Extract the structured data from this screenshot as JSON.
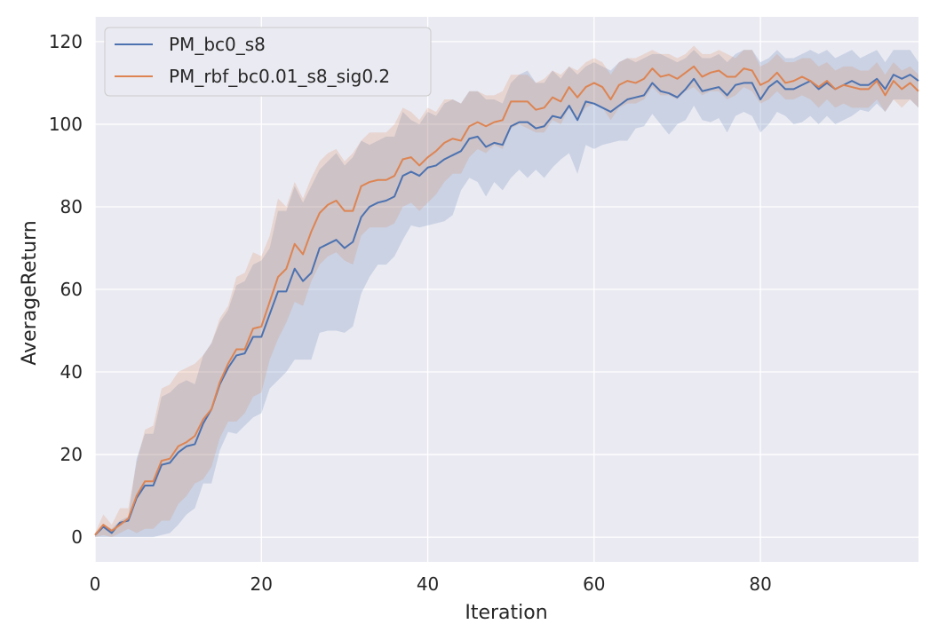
{
  "chart_data": {
    "type": "line",
    "xlabel": "Iteration",
    "ylabel": "AverageReturn",
    "xlim": [
      0,
      99
    ],
    "ylim": [
      -6,
      126
    ],
    "xticks": [
      0,
      20,
      40,
      60,
      80
    ],
    "yticks": [
      0,
      20,
      40,
      60,
      80,
      100,
      120
    ],
    "grid": true,
    "legend_position": "top-left",
    "background": "#EAEAF2",
    "x": [
      0,
      1,
      2,
      3,
      4,
      5,
      6,
      7,
      8,
      9,
      10,
      11,
      12,
      13,
      14,
      15,
      16,
      17,
      18,
      19,
      20,
      21,
      22,
      23,
      24,
      25,
      26,
      27,
      28,
      29,
      30,
      31,
      32,
      33,
      34,
      35,
      36,
      37,
      38,
      39,
      40,
      41,
      42,
      43,
      44,
      45,
      46,
      47,
      48,
      49,
      50,
      51,
      52,
      53,
      54,
      55,
      56,
      57,
      58,
      59,
      60,
      61,
      62,
      63,
      64,
      65,
      66,
      67,
      68,
      69,
      70,
      71,
      72,
      73,
      74,
      75,
      76,
      77,
      78,
      79,
      80,
      81,
      82,
      83,
      84,
      85,
      86,
      87,
      88,
      89,
      90,
      91,
      92,
      93,
      94,
      95,
      96,
      97,
      98,
      99
    ],
    "series": [
      {
        "name": "PM_bc0_s8",
        "color": "#4C72B0",
        "values": [
          0.5,
          2.5,
          1,
          3.5,
          4,
          9.5,
          12.5,
          12.5,
          17.5,
          18,
          20.5,
          22,
          22.5,
          27.5,
          31,
          37,
          41,
          44,
          44.5,
          48.5,
          48.5,
          54,
          59.5,
          59.5,
          65,
          62,
          64,
          70,
          71,
          72,
          70,
          71.5,
          77.5,
          80,
          81,
          81.5,
          82.5,
          87.5,
          88.5,
          87.5,
          89.5,
          90,
          91.5,
          92.5,
          93.5,
          96.5,
          97,
          94.5,
          95.5,
          95,
          99.5,
          100.5,
          100.5,
          99,
          99.5,
          102,
          101.5,
          104.5,
          101,
          105.5,
          105,
          104,
          103,
          104.5,
          106,
          106.5,
          107,
          110,
          108,
          107.5,
          106.5,
          108.5,
          111,
          108,
          108.5,
          109,
          107,
          109.5,
          110,
          110,
          106,
          109,
          110.5,
          108.5,
          108.5,
          109.5,
          110.5,
          108.5,
          110,
          108.5,
          109.5,
          110.5,
          109.5,
          109.5,
          111,
          108.5,
          112,
          111,
          112,
          110.5
        ],
        "lower": [
          0,
          0,
          0,
          0,
          0,
          0,
          0,
          0,
          0.5,
          1,
          3,
          5.5,
          7,
          13,
          13,
          21,
          25.5,
          25,
          27,
          29,
          30,
          36,
          38,
          40,
          43,
          43,
          43,
          49.5,
          50,
          50,
          49.5,
          51,
          59,
          63,
          66,
          66,
          68,
          72,
          75.5,
          75,
          75.5,
          76,
          76.5,
          78,
          84,
          87,
          86,
          82.5,
          86,
          84,
          87,
          89,
          87,
          89,
          87,
          89.5,
          91.5,
          93,
          88,
          95,
          94,
          95,
          95.5,
          96,
          96,
          99,
          99.5,
          102.5,
          100,
          97.5,
          100,
          101,
          104.5,
          101,
          100.5,
          101.5,
          98,
          102,
          103,
          102,
          98,
          100,
          103,
          102,
          100,
          100.5,
          102,
          100,
          102,
          100,
          101,
          102,
          103.5,
          103,
          105,
          103,
          106,
          106,
          106,
          104
        ],
        "upper": [
          1,
          3,
          2,
          4,
          5,
          19,
          25,
          25,
          34,
          35,
          37,
          38,
          37,
          44,
          47,
          52,
          55,
          61,
          62,
          66,
          67,
          70,
          79,
          79,
          85,
          81,
          85,
          89,
          91,
          93,
          90,
          92,
          96,
          95,
          96,
          97,
          97,
          103,
          101,
          100,
          103,
          102,
          105,
          106,
          105,
          108,
          108,
          106,
          106,
          105,
          110,
          112,
          113,
          110,
          110,
          113,
          111,
          114,
          112,
          114,
          115,
          114,
          113,
          115,
          116,
          115,
          116,
          117,
          117,
          116,
          115,
          116,
          118,
          116,
          116,
          117,
          115,
          117,
          118,
          118,
          115,
          116,
          118,
          116,
          116,
          117,
          118,
          117,
          118,
          116,
          117,
          118,
          116,
          117,
          118,
          115,
          118,
          118,
          118,
          115
        ]
      },
      {
        "name": "PM_rbf_bc0.01_s8_sig0.2",
        "color": "#DD8452",
        "values": [
          0.5,
          3,
          1.5,
          3,
          4.5,
          10,
          13.5,
          13.5,
          18.5,
          19,
          22,
          23,
          24.5,
          28.5,
          31,
          37.5,
          42,
          45.5,
          45.5,
          50.5,
          51,
          57,
          63,
          65,
          71,
          68.5,
          74,
          78.5,
          80.5,
          81.5,
          79,
          79,
          85,
          86,
          86.5,
          86.5,
          87.5,
          91.5,
          92,
          90,
          92,
          93.5,
          95.5,
          96.5,
          96,
          99.5,
          100.5,
          99.5,
          100.5,
          101,
          105.5,
          105.5,
          105.5,
          103.5,
          104,
          106.5,
          105.5,
          109,
          106.5,
          109,
          110,
          109,
          106,
          109.5,
          110.5,
          110,
          111,
          113.5,
          111.5,
          112,
          111,
          112.5,
          114,
          111.5,
          112.5,
          113,
          111.5,
          111.5,
          113.5,
          113,
          109.5,
          110.5,
          112.5,
          110,
          110.5,
          111.5,
          110.5,
          109,
          110.5,
          108.5,
          109.5,
          109,
          108.5,
          108.5,
          110.5,
          107,
          110.5,
          108.5,
          110,
          108
        ],
        "lower": [
          0,
          0.5,
          0,
          1,
          2,
          1,
          2,
          2,
          4,
          4,
          8,
          10,
          13,
          14,
          17,
          24,
          28,
          28,
          30,
          34,
          35,
          43,
          48,
          52,
          57,
          56,
          62,
          66,
          68,
          69,
          67,
          66,
          73,
          75,
          75,
          75,
          76,
          80,
          81,
          79,
          81,
          83,
          86,
          88,
          88,
          92,
          94,
          93,
          95,
          94,
          99,
          100,
          99,
          98,
          98,
          101,
          100,
          104,
          101,
          104,
          105,
          104,
          101,
          104,
          105,
          105,
          106,
          109,
          107,
          107,
          106,
          108,
          109,
          107,
          108,
          108,
          106,
          107,
          109,
          108,
          105,
          106,
          108,
          106,
          106,
          107,
          106,
          104,
          106,
          104,
          105,
          104,
          104,
          104,
          106,
          103,
          106,
          104,
          106,
          104
        ],
        "upper": [
          1,
          5.5,
          3,
          7,
          7,
          18,
          26,
          27,
          36,
          37,
          40,
          41,
          42,
          44,
          47,
          53,
          56,
          63,
          64,
          69,
          68,
          73,
          82,
          80,
          86,
          82,
          87,
          91,
          93,
          94,
          91,
          93,
          96,
          98,
          98,
          98,
          100,
          104,
          103,
          101,
          104,
          103,
          106,
          106,
          105,
          108,
          108,
          107,
          107,
          108,
          112,
          112,
          112,
          110,
          111,
          113,
          112,
          114,
          113,
          115,
          116,
          115,
          112,
          115,
          116,
          116,
          117,
          118,
          117,
          117,
          116,
          117,
          119,
          117,
          117,
          118,
          117,
          116,
          118,
          118,
          114,
          115,
          117,
          115,
          115,
          116,
          116,
          114,
          115,
          113,
          114,
          114,
          113,
          113,
          115,
          112,
          115,
          113,
          114,
          112
        ]
      }
    ]
  }
}
